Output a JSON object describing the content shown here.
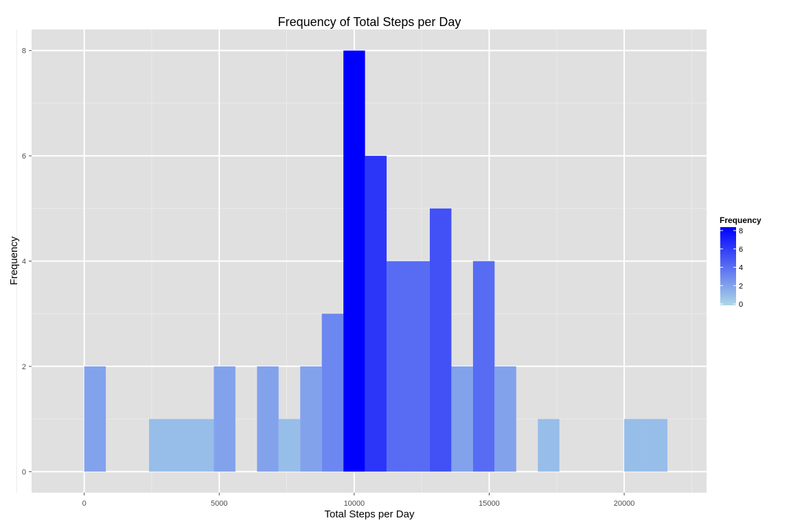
{
  "chart_data": {
    "type": "bar",
    "title": "Frequency of Total Steps per Day",
    "xlabel": "Total Steps per Day",
    "ylabel": "Frequency",
    "bin_width": 800,
    "xlim": [
      -1950,
      23050
    ],
    "ylim": [
      -0.4,
      8.4
    ],
    "x_major_ticks": [
      0,
      5000,
      10000,
      15000,
      20000
    ],
    "x_tick_labels": [
      "0",
      "5000",
      "10000",
      "15000",
      "20000"
    ],
    "y_major_ticks": [
      0,
      2,
      4,
      6,
      8
    ],
    "y_tick_labels": [
      "0",
      "2",
      "4",
      "6",
      "8"
    ],
    "grid": true,
    "bins": [
      {
        "x_start": 0,
        "x_end": 800,
        "count": 2
      },
      {
        "x_start": 800,
        "x_end": 1600,
        "count": 0
      },
      {
        "x_start": 1600,
        "x_end": 2400,
        "count": 0
      },
      {
        "x_start": 2400,
        "x_end": 3200,
        "count": 1
      },
      {
        "x_start": 3200,
        "x_end": 4000,
        "count": 1
      },
      {
        "x_start": 4000,
        "x_end": 4800,
        "count": 1
      },
      {
        "x_start": 4800,
        "x_end": 5600,
        "count": 2
      },
      {
        "x_start": 5600,
        "x_end": 6400,
        "count": 0
      },
      {
        "x_start": 6400,
        "x_end": 7200,
        "count": 2
      },
      {
        "x_start": 7200,
        "x_end": 8000,
        "count": 1
      },
      {
        "x_start": 8000,
        "x_end": 8800,
        "count": 2
      },
      {
        "x_start": 8800,
        "x_end": 9600,
        "count": 3
      },
      {
        "x_start": 9600,
        "x_end": 10400,
        "count": 8
      },
      {
        "x_start": 10400,
        "x_end": 11200,
        "count": 6
      },
      {
        "x_start": 11200,
        "x_end": 12000,
        "count": 4
      },
      {
        "x_start": 12000,
        "x_end": 12800,
        "count": 4
      },
      {
        "x_start": 12800,
        "x_end": 13600,
        "count": 5
      },
      {
        "x_start": 13600,
        "x_end": 14400,
        "count": 2
      },
      {
        "x_start": 14400,
        "x_end": 15200,
        "count": 4
      },
      {
        "x_start": 15200,
        "x_end": 16000,
        "count": 2
      },
      {
        "x_start": 16000,
        "x_end": 16800,
        "count": 0
      },
      {
        "x_start": 16800,
        "x_end": 17600,
        "count": 1
      },
      {
        "x_start": 17600,
        "x_end": 18400,
        "count": 0
      },
      {
        "x_start": 18400,
        "x_end": 19200,
        "count": 0
      },
      {
        "x_start": 19200,
        "x_end": 20000,
        "count": 0
      },
      {
        "x_start": 20000,
        "x_end": 20800,
        "count": 1
      },
      {
        "x_start": 20800,
        "x_end": 21600,
        "count": 1
      }
    ],
    "legend": {
      "title": "Frequency",
      "placement": "right",
      "breaks": [
        0,
        2,
        4,
        6,
        8
      ],
      "labels": [
        "0",
        "2",
        "4",
        "6",
        "8"
      ],
      "low_color": "#add8e6",
      "high_color": "#0000ff"
    },
    "colors": {
      "panel_background": "#e0e0e0",
      "grid_major": "#ffffff",
      "grid_minor": "#eaeaea"
    }
  }
}
